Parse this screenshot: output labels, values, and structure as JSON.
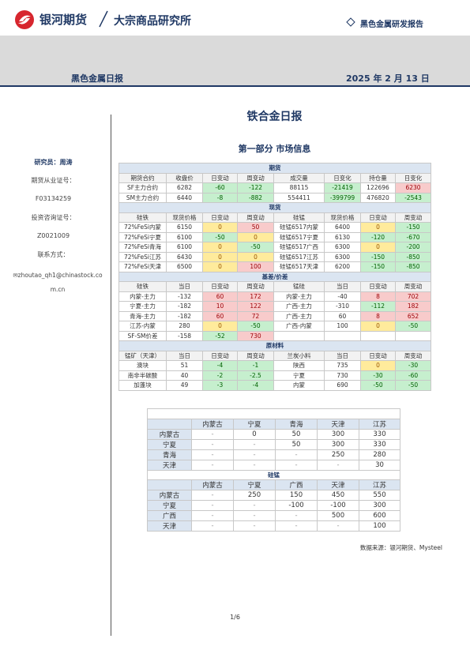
{
  "header": {
    "logo_text": "银河期货",
    "institute": "大宗商品研究所",
    "report_type": "黑色金属研发报告",
    "report_name": "黑色金属日报",
    "date": "2025 年 2 月 13 日"
  },
  "sidebar": {
    "researcher": "研究员：周涛",
    "license_label": "期货从业证号：",
    "license": "F03134259",
    "consult_label": "投资咨询证号：",
    "consult": "Z0021009",
    "contact_label": "联系方式：",
    "email": "zhoutao_qh1@chinastock.com.cn"
  },
  "title": "铁合金日报",
  "section": "第一部分 市场信息",
  "market_table": {
    "sections": [
      {
        "title": "期货",
        "header": [
          "期货合约",
          "收盘价",
          "日变动",
          "周变动",
          "成交量",
          "日变化",
          "持仓量",
          "日变化"
        ],
        "rows": [
          [
            "SF主力合约",
            "6282",
            "-60",
            "-122",
            "88115",
            "-21419",
            "122696",
            "6230"
          ],
          [
            "SM主力合约",
            "6440",
            "-8",
            "-882",
            "554411",
            "-399799",
            "476820",
            "-2543"
          ]
        ]
      },
      {
        "title": "现货",
        "header": [
          "硅铁",
          "现货价格",
          "日变动",
          "周变动",
          "硅锰",
          "现货价格",
          "日变动",
          "周变动"
        ],
        "rows": [
          [
            "72%FeSi内蒙",
            "6150",
            "0",
            "50",
            "硅锰6517内蒙",
            "6400",
            "0",
            "-150"
          ],
          [
            "72%FeSi宁夏",
            "6100",
            "-50",
            "0",
            "硅锰6517宁夏",
            "6130",
            "-120",
            "-670"
          ],
          [
            "72%FeSi青海",
            "6100",
            "0",
            "-50",
            "硅锰6517广西",
            "6300",
            "0",
            "-200"
          ],
          [
            "72%FeSi江苏",
            "6430",
            "0",
            "0",
            "硅锰6517江苏",
            "6300",
            "-150",
            "-850"
          ],
          [
            "72%FeSi天津",
            "6500",
            "0",
            "100",
            "硅锰6517天津",
            "6200",
            "-150",
            "-850"
          ]
        ]
      },
      {
        "title": "基差/价差",
        "header": [
          "硅铁",
          "当日",
          "日变动",
          "周变动",
          "锰硅",
          "当日",
          "日变动",
          "周变动"
        ],
        "rows": [
          [
            "内蒙-主力",
            "-132",
            "60",
            "172",
            "内蒙-主力",
            "-40",
            "8",
            "702"
          ],
          [
            "宁夏-主力",
            "-182",
            "10",
            "122",
            "广西-主力",
            "-310",
            "-112",
            "182"
          ],
          [
            "青海-主力",
            "-182",
            "60",
            "72",
            "广西-主力",
            "60",
            "8",
            "652"
          ],
          [
            "江苏-内蒙",
            "280",
            "0",
            "-50",
            "广西-内蒙",
            "100",
            "0",
            "-50"
          ],
          [
            "SF-SM价差",
            "-158",
            "-52",
            "730"
          ]
        ]
      },
      {
        "title": "原材料",
        "header": [
          "锰矿（天津）",
          "当日",
          "日变动",
          "周变动",
          "兰炭小料",
          "当日",
          "日变动",
          "周变动"
        ],
        "rows": [
          [
            "澳块",
            "51",
            "-4",
            "-1",
            "陕西",
            "735",
            "0",
            "-30"
          ],
          [
            "南非半碳酸",
            "40",
            "-2",
            "-2.5",
            "宁夏",
            "730",
            "-30",
            "-60"
          ],
          [
            "加蓬块",
            "49",
            "-3",
            "-4",
            "内蒙",
            "690",
            "-50",
            "-50"
          ]
        ]
      }
    ]
  },
  "spread_matrix": {
    "tables": [
      {
        "header": [
          "内蒙古",
          "宁夏",
          "青海",
          "天津",
          "江苏"
        ],
        "rows": [
          [
            "内蒙古",
            "-",
            "0",
            "50",
            "300",
            "330"
          ],
          [
            "宁夏",
            "-",
            "-",
            "50",
            "300",
            "330"
          ],
          [
            "青海",
            "-",
            "-",
            "-",
            "250",
            "280"
          ],
          [
            "天津",
            "-",
            "-",
            "-",
            "-",
            "30"
          ]
        ]
      },
      {
        "title": "硅锰",
        "header": [
          "内蒙古",
          "宁夏",
          "广西",
          "天津",
          "江苏"
        ],
        "rows": [
          [
            "内蒙古",
            "-",
            "250",
            "150",
            "450",
            "550"
          ],
          [
            "宁夏",
            "-",
            "-",
            "-100",
            "-100",
            "300"
          ],
          [
            "广西",
            "-",
            "-",
            "-",
            "500",
            "600"
          ],
          [
            "天津",
            "-",
            "-",
            "-",
            "-",
            "100"
          ]
        ]
      }
    ]
  },
  "source": "数据来源：银河期货、Mysteel",
  "page": "1/6"
}
